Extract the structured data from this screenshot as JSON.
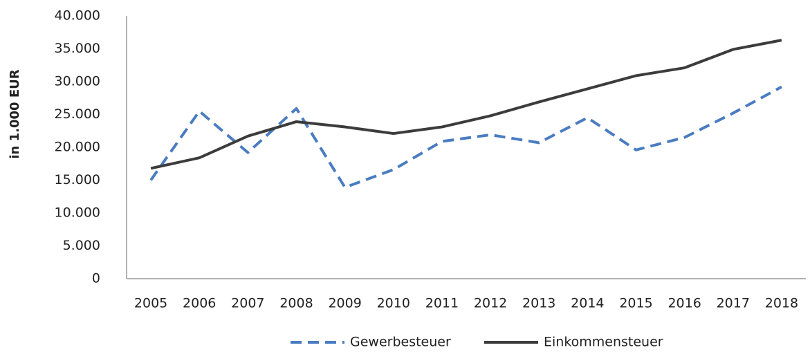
{
  "chart_data": {
    "type": "line",
    "y_label": "in 1.000 EUR",
    "categories": [
      "2005",
      "2006",
      "2007",
      "2008",
      "2009",
      "2010",
      "2011",
      "2012",
      "2013",
      "2014",
      "2015",
      "2016",
      "2017",
      "2018"
    ],
    "series": [
      {
        "name": "Gewerbesteuer",
        "color": "#4a7cc1",
        "line_style": "dashed",
        "values": [
          15000,
          25500,
          19200,
          25900,
          13900,
          16600,
          20900,
          21900,
          20700,
          24500,
          19600,
          21500,
          25200,
          29200
        ]
      },
      {
        "name": "Einkommensteuer",
        "color": "#3c3c3c",
        "line_style": "solid",
        "values": [
          16800,
          18400,
          21700,
          23900,
          23100,
          22100,
          23100,
          24800,
          26900,
          28900,
          30900,
          32100,
          34900,
          36300
        ]
      }
    ],
    "ylim": [
      0,
      40000
    ],
    "yticks": [
      0,
      {
        "value": 5000,
        "label": "5.000"
      },
      {
        "value": 10000,
        "label": "10.000"
      },
      {
        "value": 15000,
        "label": "15.000"
      },
      {
        "value": 20000,
        "label": "20.000"
      },
      {
        "value": 25000,
        "label": "25.000"
      },
      {
        "value": 30000,
        "label": "30.000"
      },
      {
        "value": 35000,
        "label": "35.000"
      },
      {
        "value": 40000,
        "label": "40.000"
      }
    ],
    "grid": false,
    "legend": "bottom"
  }
}
